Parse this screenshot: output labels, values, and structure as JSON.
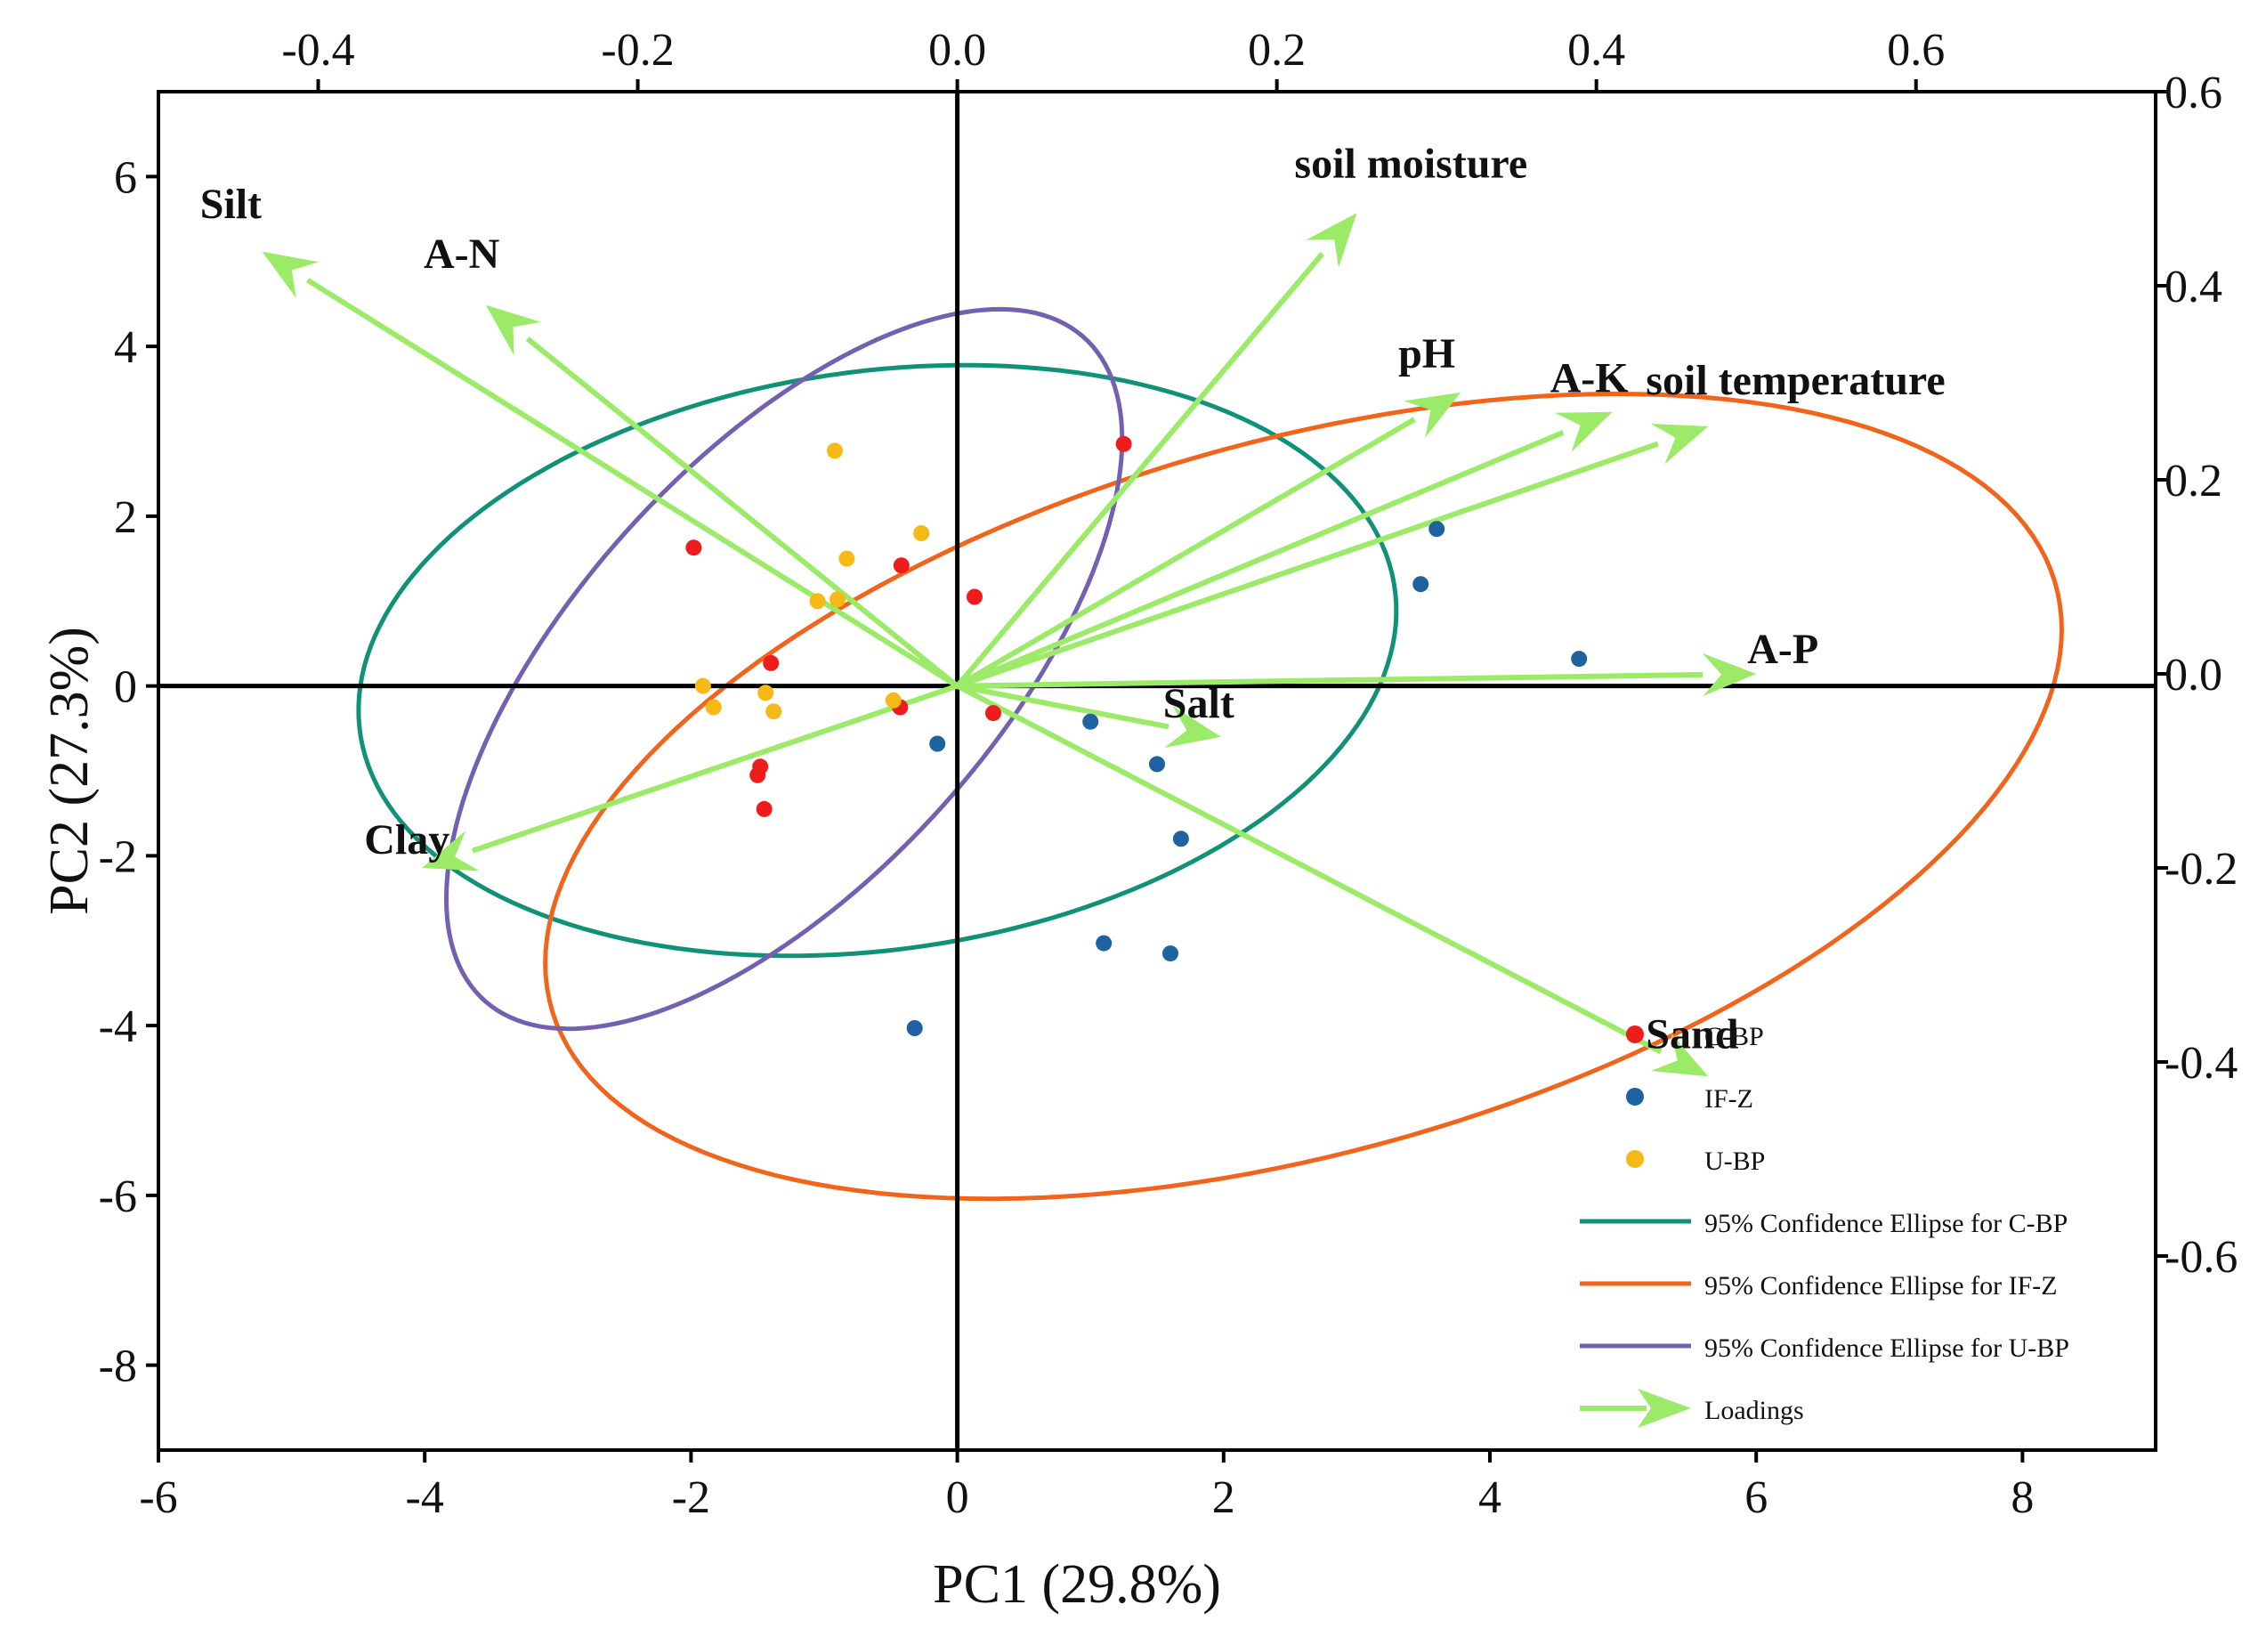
{
  "chart_data": {
    "type": "scatter",
    "subtype": "pca-biplot",
    "xlabel": "PC1 (29.8%)",
    "ylabel": "PC2 (27.3%)",
    "xlim": [
      -6,
      9
    ],
    "ylim": [
      -9,
      7
    ],
    "xticks": [
      -6,
      -4,
      -2,
      0,
      2,
      4,
      6,
      8
    ],
    "yticks": [
      -8,
      -6,
      -4,
      -2,
      0,
      2,
      4,
      6
    ],
    "xtick_labels": [
      "-6",
      "-4",
      "-2",
      "0",
      "2",
      "4",
      "6",
      "8"
    ],
    "ytick_labels": [
      "-8",
      "-6",
      "-4",
      "-2",
      "0",
      "2",
      "4",
      "6"
    ],
    "loading_xlim": [
      -0.5,
      0.75
    ],
    "loading_ylim": [
      -0.8,
      0.6
    ],
    "top_ticks": [
      -0.4,
      -0.2,
      0.0,
      0.2,
      0.4,
      0.6
    ],
    "top_tick_labels": [
      "-0.4",
      "-0.2",
      "0.0",
      "0.2",
      "0.4",
      "0.6"
    ],
    "right_ticks": [
      0.6,
      0.4,
      0.2,
      0.0,
      -0.2,
      -0.4,
      -0.6
    ],
    "right_tick_labels": [
      "0.6",
      "0.4",
      "0.2",
      "0.0",
      "-0.2",
      "-0.4",
      "-0.6"
    ],
    "groups": [
      {
        "name": "C-BP",
        "color": "#ee1c1c",
        "points": [
          [
            1.25,
            2.85
          ],
          [
            -1.98,
            1.63
          ],
          [
            -0.42,
            1.42
          ],
          [
            0.13,
            1.05
          ],
          [
            -1.4,
            0.27
          ],
          [
            -0.43,
            -0.25
          ],
          [
            0.27,
            -0.32
          ],
          [
            -1.48,
            -0.95
          ],
          [
            -1.5,
            -1.05
          ],
          [
            -1.45,
            -1.45
          ]
        ]
      },
      {
        "name": "IF-Z",
        "color": "#1e63a0",
        "points": [
          [
            3.6,
            1.85
          ],
          [
            3.48,
            1.2
          ],
          [
            4.67,
            0.32
          ],
          [
            1.0,
            -0.42
          ],
          [
            1.5,
            -0.92
          ],
          [
            -0.15,
            -0.68
          ],
          [
            1.68,
            -1.8
          ],
          [
            1.1,
            -3.03
          ],
          [
            1.6,
            -3.15
          ],
          [
            -0.32,
            -4.03
          ]
        ]
      },
      {
        "name": "U-BP",
        "color": "#f7b918",
        "points": [
          [
            -0.92,
            2.77
          ],
          [
            -0.27,
            1.8
          ],
          [
            -0.83,
            1.5
          ],
          [
            -1.05,
            1.0
          ],
          [
            -0.9,
            1.02
          ],
          [
            -1.91,
            0.0
          ],
          [
            -1.44,
            -0.08
          ],
          [
            -1.83,
            -0.25
          ],
          [
            -1.38,
            -0.3
          ],
          [
            -0.48,
            -0.17
          ]
        ]
      }
    ],
    "ellipses": [
      {
        "name": "95% Confidence Ellipse for C-BP",
        "color": "#119278",
        "center": [
          -0.6,
          0.3
        ],
        "semi_major": 4.05,
        "semi_minor": 3.3,
        "angle_deg": 28
      },
      {
        "name": "95% Confidence Ellipse for IF-Z",
        "color": "#f0641b",
        "center": [
          2.6,
          -1.3
        ],
        "semi_major": 6.3,
        "semi_minor": 3.9,
        "angle_deg": 33
      },
      {
        "name": "95% Confidence Ellipse for U-BP",
        "color": "#7460b0",
        "center": [
          -1.3,
          0.2
        ],
        "semi_major": 4.6,
        "semi_minor": 1.8,
        "angle_deg": 65
      }
    ],
    "loadings_color": "#9bea68",
    "loadings": [
      {
        "name": "Silt",
        "x": -0.435,
        "y": 0.435
      },
      {
        "name": "A-N",
        "x": -0.295,
        "y": 0.38
      },
      {
        "name": "soil moisture",
        "x": 0.25,
        "y": 0.475
      },
      {
        "name": "pH",
        "x": 0.315,
        "y": 0.29
      },
      {
        "name": "A-K",
        "x": 0.41,
        "y": 0.27
      },
      {
        "name": "soil temperature",
        "x": 0.47,
        "y": 0.255
      },
      {
        "name": "A-P",
        "x": 0.5,
        "y": 0.0
      },
      {
        "name": "Salt",
        "x": 0.165,
        "y": -0.065
      },
      {
        "name": "Sand",
        "x": 0.47,
        "y": -0.415
      },
      {
        "name": "Clay",
        "x": -0.335,
        "y": -0.2
      }
    ],
    "legend": {
      "position": "bottom-right",
      "entries": [
        "C-BP",
        "IF-Z",
        "U-BP",
        "95% Confidence Ellipse for C-BP",
        "95% Confidence Ellipse for IF-Z",
        "95% Confidence Ellipse for U-BP",
        "Loadings"
      ]
    }
  }
}
